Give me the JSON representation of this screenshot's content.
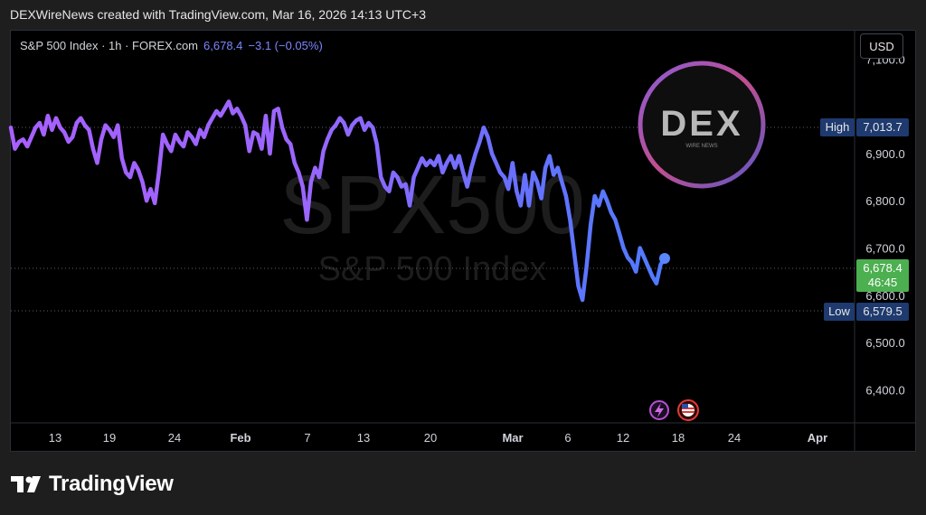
{
  "header": {
    "credit": "DEXWireNews created with TradingView.com, Mar 16, 2026 14:13 UTC+3"
  },
  "legend": {
    "symbol": "S&P 500 Index · 1h · FOREX.com",
    "last": "6,678.4",
    "change": "−3.1 (−0.05%)"
  },
  "currency_button": "USD",
  "watermark": {
    "ticker": "SPX500",
    "name": "S&P 500 Index"
  },
  "logo": {
    "text": "DEX",
    "subtext": "WIRE NEWS"
  },
  "footer": {
    "brand": "TradingView"
  },
  "price_axis": {
    "ticks": [
      "7,100.0",
      "6,900.0",
      "6,800.0",
      "6,700.0",
      "6,600.0",
      "6,500.0",
      "6,400.0"
    ]
  },
  "time_axis": {
    "ticks": [
      "13",
      "19",
      "24",
      "Feb",
      "7",
      "13",
      "20",
      "Mar",
      "6",
      "12",
      "18",
      "24",
      "Apr"
    ]
  },
  "markers": {
    "high_label": "High",
    "high_value": "7,013.7",
    "low_label": "Low",
    "low_value": "6,579.5",
    "last_value": "6,678.4",
    "countdown": "46:45"
  },
  "colors": {
    "line_start": "#b05cff",
    "line_end": "#4f7bff",
    "last_badge": "#4caf50",
    "hl_badge": "#1e3a6e"
  },
  "chart_data": {
    "type": "line",
    "title": "S&P 500 Index · 1h · FOREX.com",
    "ylim": [
      6330,
      7160
    ],
    "x_label_positions": [
      "Jan 13",
      "Jan 19",
      "Jan 24",
      "Feb",
      "Feb 7",
      "Feb 13",
      "Feb 20",
      "Mar",
      "Mar 6",
      "Mar 12",
      "Mar 18",
      "Mar 24",
      "Apr"
    ],
    "series": [
      {
        "values": [
          6955,
          6910,
          6925,
          6930,
          6915,
          6935,
          6955,
          6965,
          6940,
          6980,
          6950,
          6975,
          6955,
          6945,
          6925,
          6935,
          6965,
          6975,
          6960,
          6950,
          6910,
          6880,
          6930,
          6960,
          6950,
          6935,
          6960,
          6890,
          6860,
          6850,
          6880,
          6865,
          6840,
          6800,
          6825,
          6795,
          6860,
          6940,
          6920,
          6905,
          6940,
          6925,
          6915,
          6945,
          6935,
          6920,
          6950,
          6935,
          6960,
          6975,
          6990,
          6980,
          6995,
          7010,
          6985,
          6995,
          6980,
          6960,
          6905,
          6945,
          6940,
          6910,
          6980,
          6900,
          6990,
          6995,
          6955,
          6930,
          6920,
          6880,
          6860,
          6830,
          6760,
          6840,
          6870,
          6850,
          6905,
          6930,
          6950,
          6960,
          6975,
          6965,
          6940,
          6960,
          6970,
          6975,
          6950,
          6965,
          6955,
          6920,
          6850,
          6830,
          6820,
          6860,
          6850,
          6830,
          6835,
          6790,
          6850,
          6870,
          6890,
          6875,
          6885,
          6875,
          6895,
          6860,
          6880,
          6895,
          6870,
          6895,
          6860,
          6830,
          6870,
          6900,
          6925,
          6955,
          6935,
          6900,
          6880,
          6860,
          6850,
          6825,
          6880,
          6820,
          6790,
          6855,
          6790,
          6860,
          6840,
          6805,
          6870,
          6895,
          6855,
          6870,
          6840,
          6810,
          6760,
          6690,
          6620,
          6590,
          6660,
          6750,
          6810,
          6790,
          6820,
          6800,
          6775,
          6760,
          6730,
          6700,
          6680,
          6670,
          6650,
          6700,
          6680,
          6660,
          6640,
          6625,
          6665,
          6678
        ]
      }
    ]
  }
}
